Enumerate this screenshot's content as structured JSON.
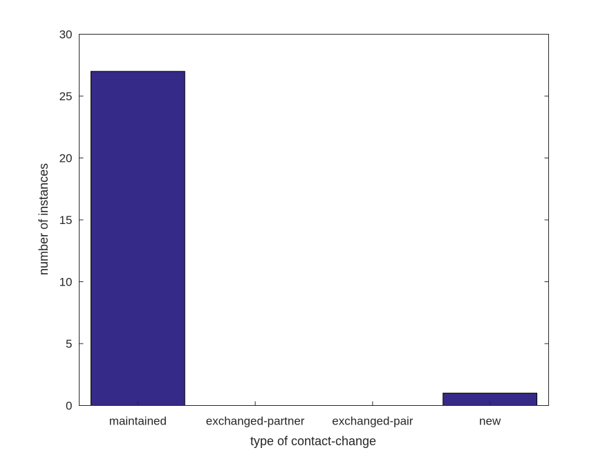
{
  "chart_data": {
    "type": "bar",
    "categories": [
      "maintained",
      "exchanged-partner",
      "exchanged-pair",
      "new"
    ],
    "values": [
      27,
      0,
      0,
      1
    ],
    "title": "",
    "xlabel": "type of contact-change",
    "ylabel": "number of instances",
    "ylim": [
      0,
      30
    ],
    "yticks": [
      0,
      5,
      10,
      15,
      20,
      25,
      30
    ],
    "grid": false,
    "bar_color": "#352a87"
  }
}
